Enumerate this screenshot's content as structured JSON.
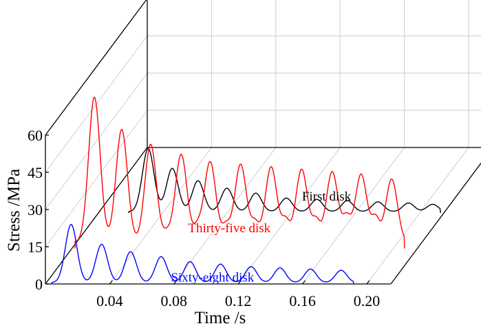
{
  "chart_data": {
    "type": "line",
    "title": "",
    "xlabel": "Time /s",
    "ylabel": "Stress /MPa",
    "x_ticks": [
      "0.04",
      "0.08",
      "0.12",
      "0.16",
      "0.20"
    ],
    "y_ticks": [
      "0",
      "15",
      "30",
      "45",
      "60"
    ],
    "xlim": [
      0.0,
      0.215
    ],
    "ylim": [
      0,
      60
    ],
    "grid": true,
    "projection": "3d-waterfall",
    "series": [
      {
        "name": "First disk",
        "color": "#000000",
        "peak_times": [
          0.031,
          0.046,
          0.062,
          0.08,
          0.098,
          0.117,
          0.136,
          0.155,
          0.174,
          0.193,
          0.208
        ],
        "peak_values": [
          26,
          18,
          13,
          10,
          8,
          6,
          5.5,
          5,
          4.5,
          4,
          3.5
        ],
        "baseline": 0.5
      },
      {
        "name": "Thirty-five disk",
        "color": "#ff0000",
        "peak_times": [
          0.014,
          0.031,
          0.049,
          0.068,
          0.086,
          0.105,
          0.124,
          0.143,
          0.162,
          0.18,
          0.199
        ],
        "peak_values": [
          61,
          48,
          42,
          38,
          35,
          34,
          33,
          32,
          31,
          30,
          28
        ],
        "secondary_times": [
          0.059,
          0.078,
          0.096,
          0.114,
          0.133,
          0.152,
          0.171,
          0.189
        ],
        "secondary_values": [
          6,
          8,
          9,
          10,
          11,
          11,
          12,
          12
        ],
        "baseline": 2.5
      },
      {
        "name": "Sixty-eight disk",
        "color": "#0000ff",
        "peak_times": [
          0.016,
          0.035,
          0.053,
          0.072,
          0.09,
          0.109,
          0.128,
          0.146,
          0.165,
          0.184
        ],
        "peak_values": [
          24,
          16,
          13,
          11,
          9,
          8,
          7,
          6.5,
          6,
          5.5
        ],
        "baseline": 0.5
      }
    ]
  }
}
